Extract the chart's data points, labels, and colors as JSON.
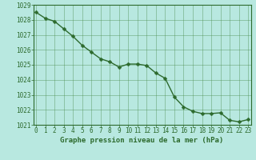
{
  "x": [
    0,
    1,
    2,
    3,
    4,
    5,
    6,
    7,
    8,
    9,
    10,
    11,
    12,
    13,
    14,
    15,
    16,
    17,
    18,
    19,
    20,
    21,
    22,
    23
  ],
  "y": [
    1028.5,
    1028.1,
    1027.9,
    1027.4,
    1026.9,
    1026.3,
    1025.85,
    1025.4,
    1025.2,
    1024.85,
    1025.05,
    1025.05,
    1024.95,
    1024.45,
    1024.1,
    1022.85,
    1022.2,
    1021.9,
    1021.75,
    1021.75,
    1021.8,
    1021.3,
    1021.2,
    1021.35
  ],
  "line_color": "#2d6a2d",
  "marker_color": "#2d6a2d",
  "bg_color": "#b8e8e0",
  "grid_color": "#4a8a4a",
  "xlabel": "Graphe pression niveau de la mer (hPa)",
  "xlabel_color": "#2d6a2d",
  "tick_color": "#2d6a2d",
  "ylim": [
    1021.0,
    1029.0
  ],
  "yticks": [
    1021,
    1022,
    1023,
    1024,
    1025,
    1026,
    1027,
    1028,
    1029
  ],
  "xticks": [
    0,
    1,
    2,
    3,
    4,
    5,
    6,
    7,
    8,
    9,
    10,
    11,
    12,
    13,
    14,
    15,
    16,
    17,
    18,
    19,
    20,
    21,
    22,
    23
  ],
  "spine_color": "#2d6a2d",
  "marker_size": 2.5,
  "line_width": 1.0,
  "font_size_xlabel": 6.5,
  "font_size_ticks": 5.5
}
